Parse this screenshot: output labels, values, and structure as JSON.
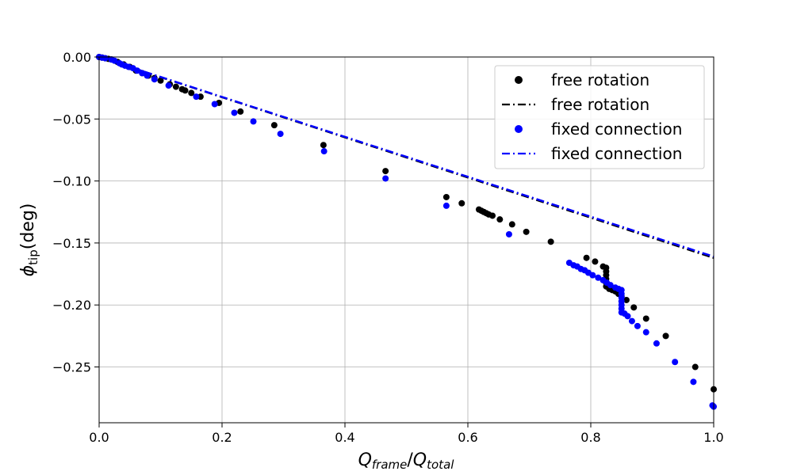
{
  "chart_data": {
    "type": "scatter",
    "xlabel": "Q_frame/Q_total",
    "ylabel": "φ_tip(deg)",
    "xlim": [
      0.0,
      1.0
    ],
    "ylim": [
      -0.295,
      0.0
    ],
    "x_ticks": [
      "0.0",
      "0.2",
      "0.4",
      "0.6",
      "0.8",
      "1.0"
    ],
    "y_ticks": [
      "0.00",
      "−0.05",
      "−0.10",
      "−0.15",
      "−0.20",
      "−0.25"
    ],
    "grid": true,
    "legend_position": "top-right",
    "series": [
      {
        "name": "free rotation",
        "kind": "points",
        "color": "#000000",
        "points": [
          [
            0.0,
            0.0
          ],
          [
            0.005,
            -0.0005
          ],
          [
            0.01,
            -0.001
          ],
          [
            0.015,
            -0.0015
          ],
          [
            0.02,
            -0.002
          ],
          [
            0.03,
            -0.004
          ],
          [
            0.04,
            -0.006
          ],
          [
            0.05,
            -0.008
          ],
          [
            0.06,
            -0.011
          ],
          [
            0.07,
            -0.013
          ],
          [
            0.08,
            -0.015
          ],
          [
            0.09,
            -0.017
          ],
          [
            0.1,
            -0.019
          ],
          [
            0.115,
            -0.022
          ],
          [
            0.125,
            -0.024
          ],
          [
            0.135,
            -0.026
          ],
          [
            0.14,
            -0.027
          ],
          [
            0.15,
            -0.029
          ],
          [
            0.165,
            -0.032
          ],
          [
            0.195,
            -0.037
          ],
          [
            0.23,
            -0.044
          ],
          [
            0.285,
            -0.055
          ],
          [
            0.365,
            -0.071
          ],
          [
            0.466,
            -0.092
          ],
          [
            0.565,
            -0.113
          ],
          [
            0.59,
            -0.118
          ],
          [
            0.618,
            -0.123
          ],
          [
            0.622,
            -0.124
          ],
          [
            0.626,
            -0.125
          ],
          [
            0.63,
            -0.126
          ],
          [
            0.634,
            -0.127
          ],
          [
            0.64,
            -0.128
          ],
          [
            0.652,
            -0.131
          ],
          [
            0.672,
            -0.135
          ],
          [
            0.695,
            -0.141
          ],
          [
            0.735,
            -0.149
          ],
          [
            0.793,
            -0.162
          ],
          [
            0.807,
            -0.165
          ],
          [
            0.82,
            -0.169
          ],
          [
            0.825,
            -0.17
          ],
          [
            0.825,
            -0.173
          ],
          [
            0.825,
            -0.176
          ],
          [
            0.825,
            -0.179
          ],
          [
            0.825,
            -0.182
          ],
          [
            0.825,
            -0.185
          ],
          [
            0.83,
            -0.187
          ],
          [
            0.835,
            -0.188
          ],
          [
            0.84,
            -0.189
          ],
          [
            0.845,
            -0.191
          ],
          [
            0.85,
            -0.193
          ],
          [
            0.858,
            -0.196
          ],
          [
            0.87,
            -0.202
          ],
          [
            0.89,
            -0.211
          ],
          [
            0.922,
            -0.225
          ],
          [
            0.97,
            -0.25
          ],
          [
            1.0,
            -0.268
          ]
        ]
      },
      {
        "name": "free rotation",
        "kind": "line",
        "color": "#000000",
        "points": [
          [
            0.0,
            0.0
          ],
          [
            1.0,
            -0.162
          ]
        ]
      },
      {
        "name": "fixed connection",
        "kind": "points",
        "color": "#0000ff",
        "points": [
          [
            0.0,
            0.0
          ],
          [
            0.005,
            -0.0005
          ],
          [
            0.01,
            -0.001
          ],
          [
            0.02,
            -0.002
          ],
          [
            0.025,
            -0.003
          ],
          [
            0.033,
            -0.005
          ],
          [
            0.037,
            -0.006
          ],
          [
            0.042,
            -0.007
          ],
          [
            0.048,
            -0.008
          ],
          [
            0.055,
            -0.009
          ],
          [
            0.062,
            -0.011
          ],
          [
            0.07,
            -0.013
          ],
          [
            0.078,
            -0.015
          ],
          [
            0.09,
            -0.018
          ],
          [
            0.113,
            -0.023
          ],
          [
            0.158,
            -0.032
          ],
          [
            0.188,
            -0.038
          ],
          [
            0.22,
            -0.045
          ],
          [
            0.251,
            -0.052
          ],
          [
            0.295,
            -0.062
          ],
          [
            0.366,
            -0.076
          ],
          [
            0.466,
            -0.098
          ],
          [
            0.565,
            -0.12
          ],
          [
            0.667,
            -0.143
          ],
          [
            0.765,
            -0.166
          ],
          [
            0.772,
            -0.168
          ],
          [
            0.778,
            -0.169
          ],
          [
            0.784,
            -0.171
          ],
          [
            0.79,
            -0.172
          ],
          [
            0.796,
            -0.174
          ],
          [
            0.803,
            -0.176
          ],
          [
            0.812,
            -0.178
          ],
          [
            0.82,
            -0.18
          ],
          [
            0.826,
            -0.182
          ],
          [
            0.832,
            -0.184
          ],
          [
            0.84,
            -0.186
          ],
          [
            0.845,
            -0.187
          ],
          [
            0.85,
            -0.188
          ],
          [
            0.85,
            -0.191
          ],
          [
            0.85,
            -0.194
          ],
          [
            0.85,
            -0.197
          ],
          [
            0.85,
            -0.2
          ],
          [
            0.85,
            -0.203
          ],
          [
            0.85,
            -0.206
          ],
          [
            0.855,
            -0.207
          ],
          [
            0.86,
            -0.209
          ],
          [
            0.867,
            -0.213
          ],
          [
            0.876,
            -0.217
          ],
          [
            0.89,
            -0.222
          ],
          [
            0.907,
            -0.231
          ],
          [
            0.937,
            -0.246
          ],
          [
            0.967,
            -0.262
          ],
          [
            0.998,
            -0.281
          ],
          [
            1.0,
            -0.282
          ]
        ]
      },
      {
        "name": "fixed connection",
        "kind": "line",
        "color": "#0000ff",
        "points": [
          [
            0.0,
            0.0
          ],
          [
            1.0,
            -0.161
          ]
        ]
      }
    ]
  }
}
